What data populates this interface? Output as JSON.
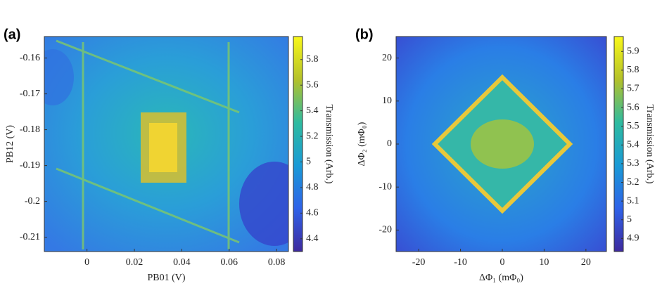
{
  "chart_data": [
    {
      "type": "heatmap",
      "title": "(a)",
      "xlabel": "PB01 (V)",
      "ylabel": "PB12 (V)",
      "xlim": [
        -0.018,
        0.085
      ],
      "xticks": [
        0,
        0.02,
        0.04,
        0.06,
        0.08
      ],
      "ylim": [
        -0.214,
        -0.154
      ],
      "yticks": [
        -0.21,
        -0.2,
        -0.19,
        -0.18,
        -0.17,
        -0.16
      ],
      "colorbar": {
        "label": "Transmission (Arb.)",
        "lim": [
          4.3,
          5.98
        ],
        "ticks": [
          4.4,
          4.6,
          4.8,
          5,
          5.2,
          5.4,
          5.6,
          5.8
        ]
      }
    },
    {
      "type": "heatmap",
      "title": "(b)",
      "xlabel": "ΔΦ₁ (mΦ₀)",
      "ylabel": "ΔΦ₂ (mΦ₀)",
      "xlim": [
        -25.4,
        24.9
      ],
      "xticks": [
        -20,
        -10,
        0,
        10,
        20
      ],
      "ylim": [
        -25,
        25
      ],
      "yticks": [
        -20,
        -10,
        0,
        10,
        20
      ],
      "colorbar": {
        "label": "Transmission (Arb.)",
        "lim": [
          4.83,
          5.98
        ],
        "ticks": [
          4.9,
          5,
          5.1,
          5.2,
          5.3,
          5.4,
          5.5,
          5.6,
          5.7,
          5.8,
          5.9
        ]
      }
    }
  ]
}
